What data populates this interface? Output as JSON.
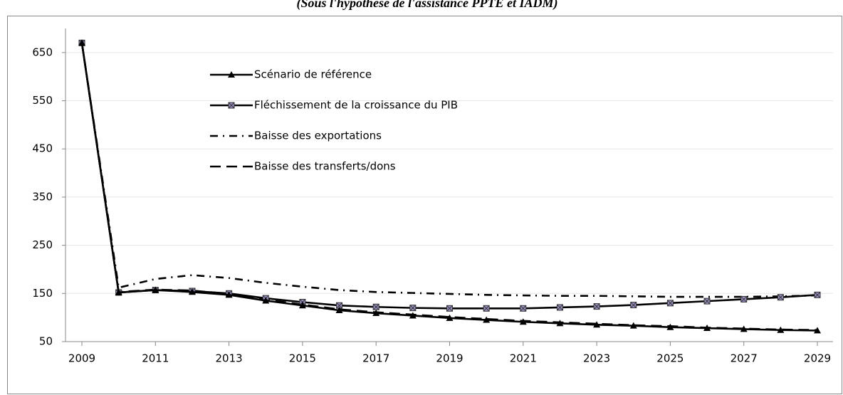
{
  "chart_data": {
    "type": "line",
    "title": "(Sous l'hypothèse de l'assistance PPTE et IADM)",
    "categories": [
      "2009",
      null,
      "2011",
      null,
      "2013",
      null,
      "2015",
      null,
      "2017",
      null,
      "2019",
      null,
      "2021",
      null,
      "2023",
      null,
      "2025",
      null,
      "2027",
      null,
      "2029"
    ],
    "series": [
      {
        "name": "Scénario de référence",
        "color": "#000000",
        "marker": "triangle",
        "dash": "solid",
        "values": [
          670,
          152,
          157,
          153,
          147,
          135,
          125,
          115,
          109,
          104,
          99,
          95,
          91,
          88,
          85,
          83,
          80,
          78,
          76,
          74,
          73
        ]
      },
      {
        "name": "Fléchissement de la croissance du PIB",
        "color": "#000000",
        "marker": "square-x",
        "dash": "solid",
        "values": [
          670,
          152,
          157,
          155,
          150,
          140,
          132,
          125,
          122,
          120,
          119,
          119,
          119,
          121,
          123,
          126,
          130,
          134,
          138,
          142,
          147
        ]
      },
      {
        "name": "Baisse des exportations",
        "color": "#000000",
        "marker": "none",
        "dash": "dashdot",
        "values": [
          670,
          162,
          180,
          188,
          182,
          172,
          164,
          157,
          153,
          151,
          149,
          147,
          146,
          145,
          145,
          144,
          143,
          143,
          143,
          144,
          146
        ]
      },
      {
        "name": "Baisse des transferts/dons",
        "color": "#000000",
        "marker": "none",
        "dash": "dash",
        "values": [
          670,
          153,
          158,
          156,
          149,
          137,
          127,
          117,
          111,
          106,
          101,
          97,
          93,
          90,
          87,
          84,
          82,
          79,
          77,
          75,
          74
        ]
      }
    ],
    "ylim": [
      50,
      700
    ],
    "yticks": [
      50,
      150,
      250,
      350,
      450,
      550,
      650
    ],
    "grid": true,
    "legend": "upper-left"
  }
}
